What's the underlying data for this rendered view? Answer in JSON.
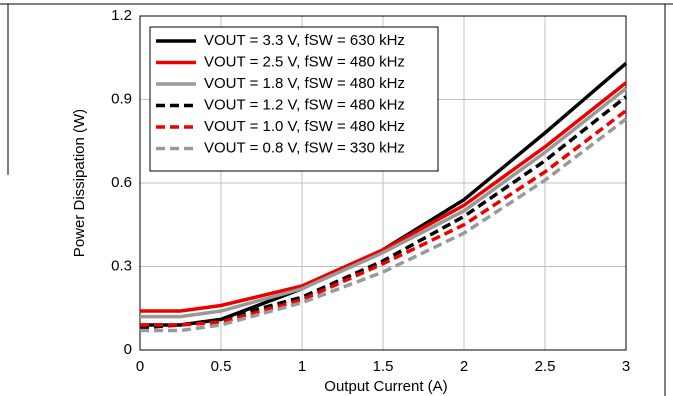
{
  "chart_data": {
    "type": "line",
    "x_label": "Output Current (A)",
    "y_label": "Power Dissipation (W)",
    "x": [
      0,
      0.25,
      0.5,
      1,
      1.5,
      2,
      2.5,
      3
    ],
    "xlim": [
      0,
      3
    ],
    "xticks": [
      0,
      0.5,
      1,
      1.5,
      2,
      2.5,
      3
    ],
    "ylim": [
      0,
      1.2
    ],
    "yticks": [
      0,
      0.3,
      0.6,
      0.9,
      1.2
    ],
    "grid": true,
    "legend": "upper left",
    "series": [
      {
        "name": "VOUT = 3.3 V, fSW = 630 kHz",
        "color": "#000000",
        "style": "solid",
        "values": [
          0.09,
          0.09,
          0.11,
          0.22,
          0.36,
          0.54,
          0.78,
          1.03
        ]
      },
      {
        "name": "VOUT = 2.5 V, fSW = 480 kHz",
        "color": "#ee0000",
        "style": "solid",
        "values": [
          0.14,
          0.14,
          0.16,
          0.23,
          0.36,
          0.52,
          0.73,
          0.96
        ]
      },
      {
        "name": "VOUT = 1.8 V, fSW = 480 kHz",
        "color": "#999999",
        "style": "solid",
        "values": [
          0.12,
          0.12,
          0.14,
          0.22,
          0.35,
          0.5,
          0.71,
          0.94
        ]
      },
      {
        "name": "VOUT = 1.2 V, fSW = 480 kHz",
        "color": "#000000",
        "style": "dashed",
        "values": [
          0.08,
          0.09,
          0.11,
          0.19,
          0.32,
          0.48,
          0.68,
          0.91
        ]
      },
      {
        "name": "VOUT = 1.0 V, fSW = 480 kHz",
        "color": "#ee0000",
        "style": "dashed",
        "values": [
          0.09,
          0.09,
          0.1,
          0.18,
          0.31,
          0.45,
          0.64,
          0.86
        ]
      },
      {
        "name": "VOUT = 0.8 V, fSW = 330 kHz",
        "color": "#999999",
        "style": "dashed",
        "values": [
          0.07,
          0.07,
          0.09,
          0.17,
          0.28,
          0.42,
          0.61,
          0.83
        ]
      }
    ]
  }
}
